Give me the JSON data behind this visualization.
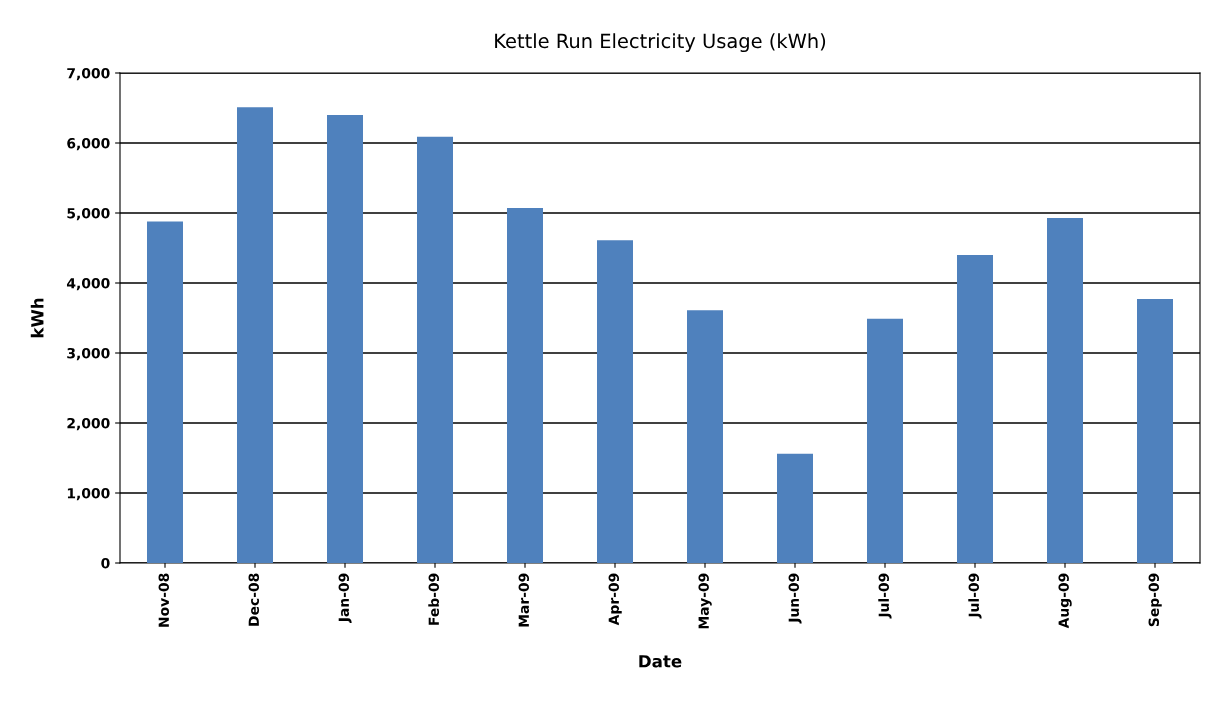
{
  "chart_data": {
    "type": "bar",
    "title": "Kettle Run Electricity Usage (kWh)",
    "xlabel": "Date",
    "ylabel": "kWh",
    "categories": [
      "Nov-08",
      "Dec-08",
      "Jan-09",
      "Feb-09",
      "Mar-09",
      "Apr-09",
      "May-09",
      "Jun-09",
      "Jul-09",
      "Jul-09",
      "Aug-09",
      "Sep-09"
    ],
    "values": [
      4880,
      6510,
      6400,
      6090,
      5070,
      4610,
      3610,
      1560,
      3490,
      4400,
      4930,
      3770
    ],
    "color": "#4f81bd",
    "ylim": [
      0,
      7000
    ],
    "yticks": [
      {
        "value": 0,
        "label": "0"
      },
      {
        "value": 1000,
        "label": "1,000"
      },
      {
        "value": 2000,
        "label": "2,000"
      },
      {
        "value": 3000,
        "label": "3,000"
      },
      {
        "value": 4000,
        "label": "4,000"
      },
      {
        "value": 5000,
        "label": "5,000"
      },
      {
        "value": 6000,
        "label": "6,000"
      },
      {
        "value": 7000,
        "label": "7,000"
      }
    ],
    "grid": "y",
    "legend": false
  }
}
